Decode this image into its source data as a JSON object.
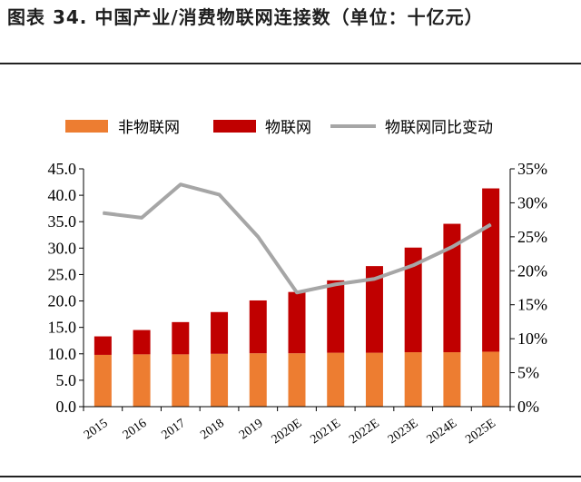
{
  "title": "图表 34. 中国产业/消费物联网连接数（单位：十亿元）",
  "colors": {
    "non_iot": "#ED7D31",
    "iot": "#C00000",
    "yoy": "#A6A6A6"
  },
  "chart_data": {
    "type": "bar",
    "stacked": true,
    "categories": [
      "2015",
      "2016",
      "2017",
      "2018",
      "2019",
      "2020E",
      "2021E",
      "2022E",
      "2023E",
      "2024E",
      "2025E"
    ],
    "series": [
      {
        "name": "非物联网",
        "type": "bar",
        "axis": "left",
        "values": [
          9.8,
          9.9,
          9.9,
          10.0,
          10.1,
          10.1,
          10.2,
          10.2,
          10.3,
          10.3,
          10.4
        ]
      },
      {
        "name": "物联网",
        "type": "bar",
        "axis": "left",
        "values": [
          3.5,
          4.6,
          6.1,
          7.9,
          10.0,
          11.6,
          13.7,
          16.4,
          19.8,
          24.3,
          30.9
        ]
      },
      {
        "name": "物联网同比变动",
        "type": "line",
        "axis": "right",
        "values": [
          28.5,
          27.8,
          32.7,
          31.2,
          25.0,
          16.8,
          18.0,
          18.8,
          20.8,
          23.5,
          26.8
        ]
      }
    ],
    "y_left": {
      "ylim": [
        0,
        45
      ],
      "ticks": [
        "0.0",
        "5.0",
        "10.0",
        "15.0",
        "20.0",
        "25.0",
        "30.0",
        "35.0",
        "40.0",
        "45.0"
      ]
    },
    "y_right": {
      "ylim": [
        0,
        35
      ],
      "ticks": [
        "0%",
        "5%",
        "10%",
        "15%",
        "20%",
        "25%",
        "30%",
        "35%"
      ]
    },
    "legend_position": "top",
    "grid": false
  }
}
